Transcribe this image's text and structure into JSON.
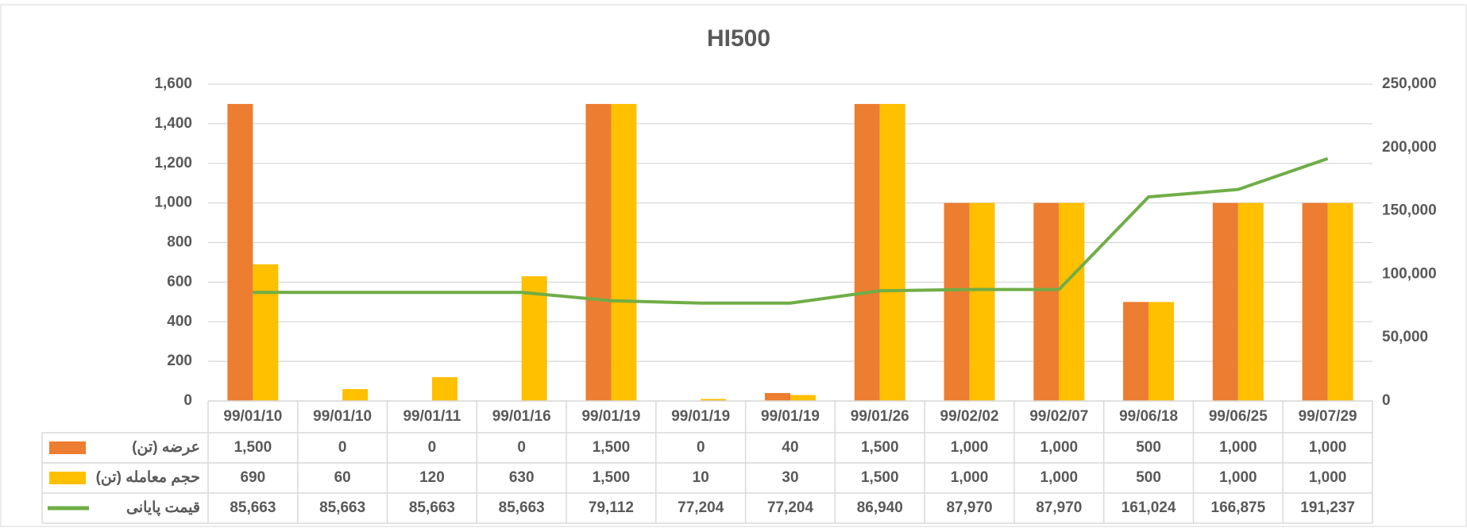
{
  "chart_data": {
    "type": "bar-line",
    "title": "HI500",
    "categories": [
      "99/01/10",
      "99/01/10",
      "99/01/11",
      "99/01/16",
      "99/01/19",
      "99/01/19",
      "99/01/19",
      "99/01/26",
      "99/02/02",
      "99/02/07",
      "99/06/18",
      "99/06/25",
      "99/07/29"
    ],
    "series": [
      {
        "name": "عرضه (تن)",
        "color": "#ED7D31",
        "type": "bar",
        "values": [
          1500,
          0,
          0,
          0,
          1500,
          0,
          40,
          1500,
          1000,
          1000,
          500,
          1000,
          1000
        ],
        "value_labels": [
          "1,500",
          "0",
          "0",
          "0",
          "1,500",
          "0",
          "40",
          "1,500",
          "1,000",
          "1,000",
          "500",
          "1,000",
          "1,000"
        ]
      },
      {
        "name": "حجم معامله (تن)",
        "color": "#FFC000",
        "type": "bar",
        "values": [
          690,
          60,
          120,
          630,
          1500,
          10,
          30,
          1500,
          1000,
          1000,
          500,
          1000,
          1000
        ],
        "value_labels": [
          "690",
          "60",
          "120",
          "630",
          "1,500",
          "10",
          "30",
          "1,500",
          "1,000",
          "1,000",
          "500",
          "1,000",
          "1,000"
        ]
      },
      {
        "name": "قیمت پایانی",
        "color": "#70AD47",
        "type": "line",
        "axis": "y2",
        "values": [
          85663,
          85663,
          85663,
          85663,
          79112,
          77204,
          77204,
          86940,
          87970,
          87970,
          161024,
          166875,
          191237
        ],
        "value_labels": [
          "85,663",
          "85,663",
          "85,663",
          "85,663",
          "79,112",
          "77,204",
          "77,204",
          "86,940",
          "87,970",
          "87,970",
          "161,024",
          "166,875",
          "191,237"
        ]
      }
    ],
    "ylim": [
      0,
      1600
    ],
    "yticks": [
      0,
      200,
      400,
      600,
      800,
      {
        "value": 1000,
        "label": "1,000"
      },
      {
        "value": 1200,
        "label": "1,200"
      },
      {
        "value": 1400,
        "label": "1,400"
      },
      {
        "value": 1600,
        "label": "1,600"
      }
    ],
    "y2lim": [
      0,
      250000
    ],
    "y2ticks": [
      0,
      {
        "value": 50000,
        "label": "50,000"
      },
      {
        "value": 100000,
        "label": "100,000"
      },
      {
        "value": 150000,
        "label": "150,000"
      },
      {
        "value": 200000,
        "label": "200,000"
      },
      {
        "value": 250000,
        "label": "250,000"
      }
    ],
    "grid": true
  }
}
